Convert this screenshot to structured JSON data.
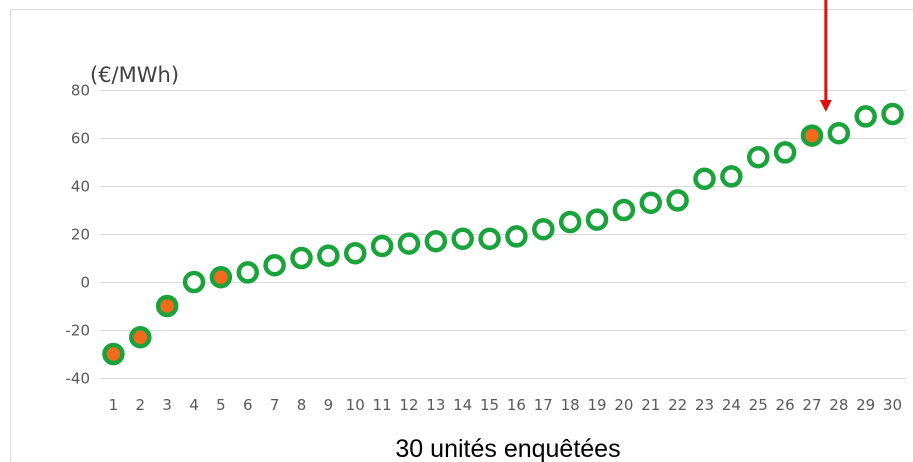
{
  "chart_data": {
    "type": "scatter",
    "title": "",
    "unit_label": "(€/MWh)",
    "xlabel": "30 unités enquêtées",
    "ylabel": "",
    "ylim": [
      -40,
      80
    ],
    "yticks": [
      80,
      60,
      40,
      20,
      0,
      -20,
      -40
    ],
    "categories": [
      "1",
      "2",
      "3",
      "4",
      "5",
      "6",
      "7",
      "8",
      "9",
      "10",
      "11",
      "12",
      "13",
      "14",
      "15",
      "16",
      "17",
      "18",
      "19",
      "20",
      "21",
      "22",
      "23",
      "24",
      "25",
      "26",
      "27",
      "28",
      "29",
      "30"
    ],
    "values": [
      -30,
      -23,
      -10,
      0,
      2,
      4,
      7,
      10,
      11,
      12,
      15,
      16,
      17,
      18,
      18,
      19,
      22,
      25,
      26,
      30,
      33,
      34,
      43,
      44,
      52,
      54,
      61,
      62,
      69,
      70
    ],
    "highlighted_points": [
      1,
      2,
      3,
      5,
      27
    ],
    "annotation_arrow_target": 28,
    "grid": true,
    "colors": {
      "marker_ring": "#1aa33a",
      "marker_fill_highlight": "#f26b1d",
      "arrow": "#e01010",
      "grid": "#d9d9d9",
      "tick_text": "#595959"
    }
  }
}
